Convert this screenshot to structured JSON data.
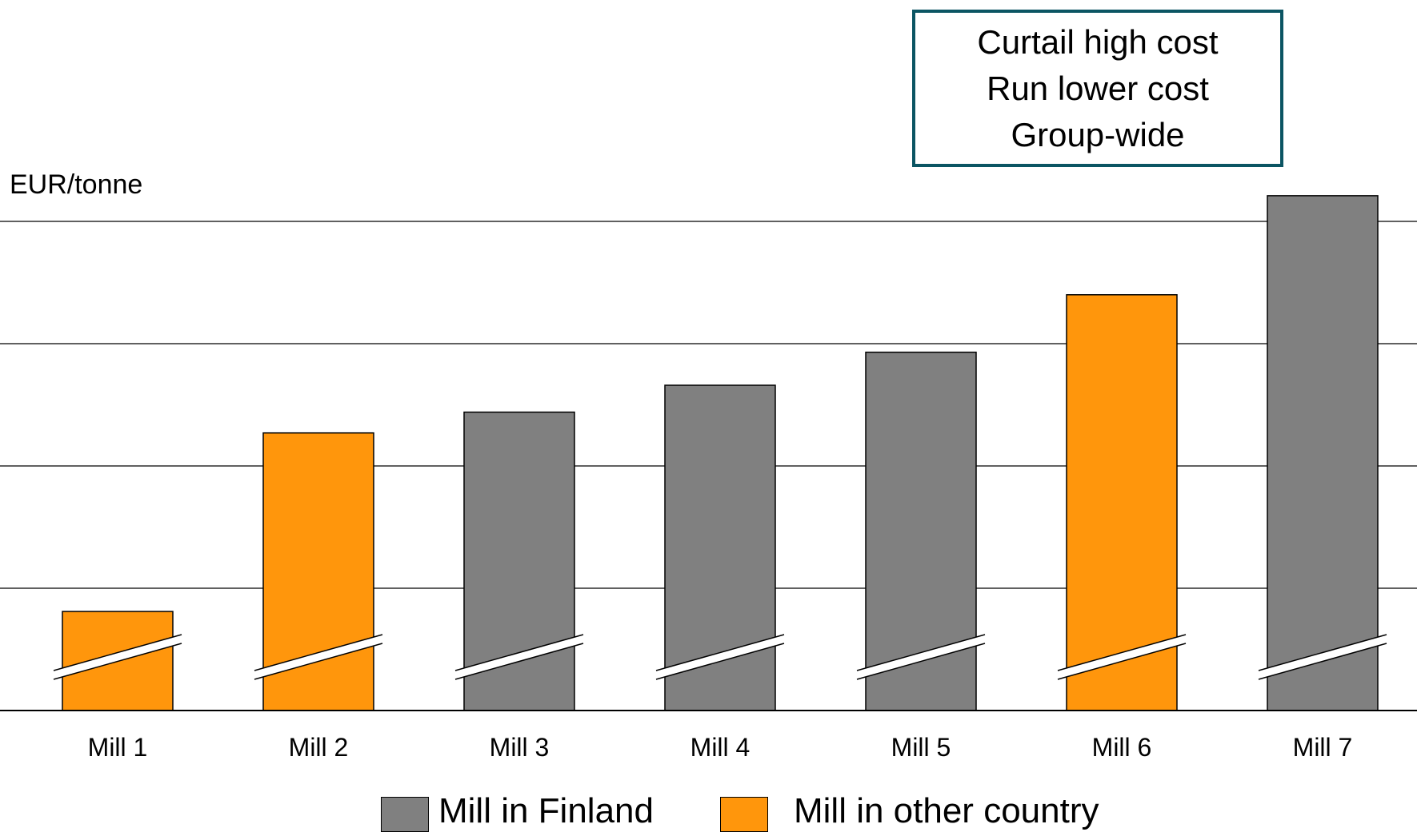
{
  "y_axis": {
    "label": "EUR/tonne"
  },
  "callout": {
    "lines": [
      "Curtail high cost",
      "Run lower cost",
      "Group-wide"
    ]
  },
  "legend": [
    {
      "label": "Mill in Finland",
      "color": "#808080"
    },
    {
      "label": "Mill in other country",
      "color": "#ff960c"
    }
  ],
  "colors": {
    "finland": "#808080",
    "other": "#ff960c",
    "callout_border": "#0b5563",
    "gridline": "#000000"
  },
  "chart_data": {
    "type": "bar",
    "categories": [
      "Mill 1",
      "Mill 2",
      "Mill 3",
      "Mill 4",
      "Mill 5",
      "Mill 6",
      "Mill 7"
    ],
    "values": [
      0.81,
      2.27,
      2.44,
      2.66,
      2.93,
      3.4,
      4.21
    ],
    "country": [
      "other",
      "other",
      "finland",
      "finland",
      "finland",
      "other",
      "finland"
    ],
    "ylabel": "EUR/tonne",
    "ylim": [
      0,
      4
    ],
    "gridlines": [
      1,
      2,
      3,
      4
    ],
    "broken_axis": true,
    "grid": true
  }
}
